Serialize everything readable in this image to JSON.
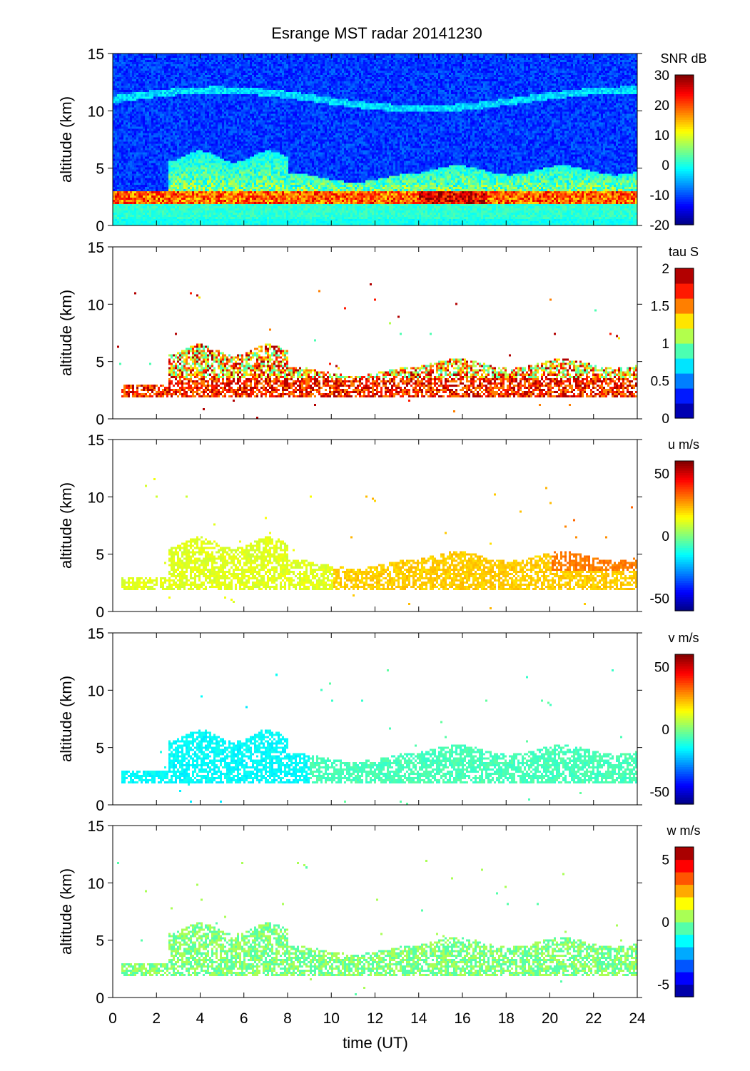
{
  "chart_data": {
    "type": "heatmap",
    "title": "Esrange MST radar 20141230",
    "xlabel": "time (UT)",
    "ylabel": "altitude (km)",
    "xlim": [
      0,
      24
    ],
    "ylim": [
      0,
      15
    ],
    "xticks": [
      "0",
      "2",
      "4",
      "6",
      "8",
      "10",
      "12",
      "14",
      "16",
      "18",
      "20",
      "22",
      "24"
    ],
    "yticks": [
      "0",
      "5",
      "10",
      "15"
    ],
    "panels": [
      {
        "variable": "SNR",
        "colorbar_label": "SNR dB",
        "clim": [
          -20,
          30
        ],
        "cticks": [
          "-20",
          "-10",
          "0",
          "10",
          "20",
          "30"
        ],
        "levels": 64,
        "masked": false
      },
      {
        "variable": "tau",
        "colorbar_label": "tau S",
        "clim": [
          0,
          2
        ],
        "cticks": [
          "0",
          "0.5",
          "1",
          "1.5",
          "2"
        ],
        "levels": 10,
        "masked": true
      },
      {
        "variable": "u",
        "colorbar_label": "u m/s",
        "clim": [
          -60,
          60
        ],
        "cticks": [
          "-50",
          "0",
          "50"
        ],
        "levels": 64,
        "masked": true
      },
      {
        "variable": "v",
        "colorbar_label": "v m/s",
        "clim": [
          -60,
          60
        ],
        "cticks": [
          "-50",
          "0",
          "50"
        ],
        "levels": 64,
        "masked": true
      },
      {
        "variable": "w",
        "colorbar_label": "w m/s",
        "clim": [
          -6,
          6
        ],
        "cticks": [
          "-5",
          "0",
          "5"
        ],
        "levels": 12,
        "masked": true
      }
    ]
  }
}
